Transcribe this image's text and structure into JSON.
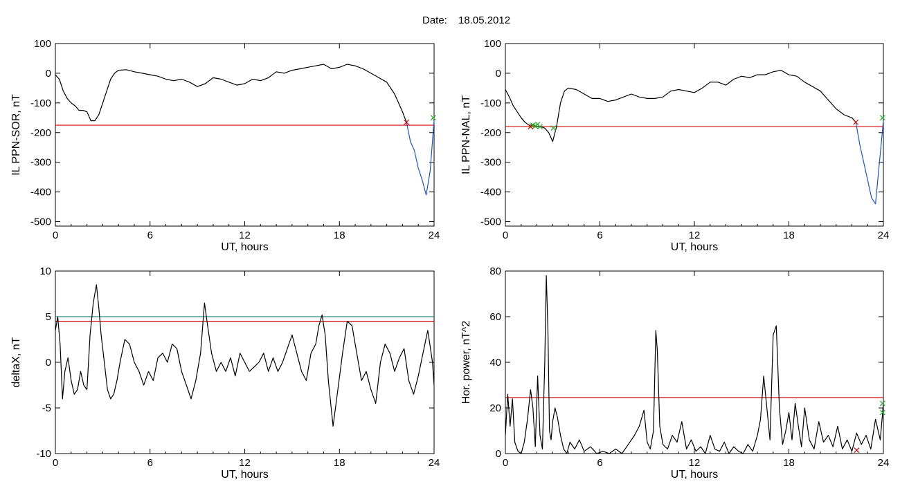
{
  "figure": {
    "date_label": "Date:",
    "date_value": "18.05.2012"
  },
  "colors": {
    "trace": "#000000",
    "threshold_red": "#d00000",
    "threshold_teal": "#208a8a",
    "highlight_blue": "#1a55c8",
    "marker_red": "#d00000",
    "marker_green": "#22aa22",
    "axis": "#000000"
  },
  "chart_data": [
    {
      "id": "sor",
      "type": "line",
      "title": "",
      "xlabel": "UT, hours",
      "ylabel": "IL PPN-SOR, nT",
      "xlim": [
        0,
        24
      ],
      "ylim": [
        -515,
        100
      ],
      "xticks": [
        0,
        6,
        12,
        18,
        24
      ],
      "yticks": [
        100,
        0,
        -100,
        -200,
        -300,
        -400,
        -500
      ],
      "grid": false,
      "threshold": {
        "value": -175,
        "color": "threshold_red"
      },
      "series": [
        {
          "color": "trace",
          "x": [
            0,
            0.25,
            0.5,
            0.75,
            1.0,
            1.25,
            1.5,
            1.75,
            2.0,
            2.25,
            2.5,
            2.75,
            3.0,
            3.25,
            3.5,
            3.75,
            4.0,
            4.5,
            5.0,
            5.5,
            6.0,
            6.5,
            7.0,
            7.5,
            8.0,
            8.5,
            9.0,
            9.5,
            10.0,
            10.5,
            11.0,
            11.5,
            12.0,
            12.5,
            13.0,
            13.5,
            14.0,
            14.5,
            15.0,
            15.5,
            16.0,
            16.5,
            17.0,
            17.5,
            18.0,
            18.5,
            19.0,
            19.5,
            20.0,
            20.5,
            21.0,
            21.5,
            22.0,
            22.25
          ],
          "y": [
            -5,
            -20,
            -60,
            -85,
            -100,
            -110,
            -125,
            -125,
            -130,
            -160,
            -160,
            -140,
            -100,
            -60,
            -20,
            0,
            10,
            12,
            5,
            0,
            -5,
            -10,
            -20,
            -25,
            -20,
            -30,
            -45,
            -35,
            -15,
            -20,
            -30,
            -40,
            -35,
            -20,
            -25,
            -15,
            5,
            0,
            10,
            15,
            20,
            25,
            30,
            15,
            20,
            30,
            25,
            15,
            0,
            -15,
            -30,
            -70,
            -130,
            -165
          ]
        },
        {
          "color": "highlight_blue",
          "x": [
            22.25,
            22.5,
            22.75,
            23.0,
            23.25,
            23.5,
            23.75,
            24.0
          ],
          "y": [
            -165,
            -230,
            -260,
            -320,
            -360,
            -410,
            -330,
            -160
          ]
        }
      ],
      "markers": [
        {
          "x": 22.25,
          "y": -165,
          "symbol": "x",
          "color": "marker_red"
        },
        {
          "x": 23.95,
          "y": -150,
          "symbol": "x",
          "color": "marker_green"
        }
      ]
    },
    {
      "id": "nal",
      "type": "line",
      "title": "",
      "xlabel": "UT, hours",
      "ylabel": "IL PPN-NAL, nT",
      "xlim": [
        0,
        24
      ],
      "ylim": [
        -515,
        100
      ],
      "xticks": [
        0,
        6,
        12,
        18,
        24
      ],
      "yticks": [
        100,
        0,
        -100,
        -200,
        -300,
        -400,
        -500
      ],
      "grid": false,
      "threshold": {
        "value": -180,
        "color": "threshold_red"
      },
      "series": [
        {
          "color": "trace",
          "x": [
            0,
            0.25,
            0.5,
            0.75,
            1.0,
            1.25,
            1.5,
            1.75,
            2.0,
            2.25,
            2.5,
            2.75,
            3.0,
            3.25,
            3.5,
            3.75,
            4.0,
            4.5,
            5.0,
            5.5,
            6.0,
            6.5,
            7.0,
            7.5,
            8.0,
            8.5,
            9.0,
            9.5,
            10.0,
            10.5,
            11.0,
            11.5,
            12.0,
            12.5,
            13.0,
            13.5,
            14.0,
            14.5,
            15.0,
            15.5,
            16.0,
            16.5,
            17.0,
            17.5,
            18.0,
            18.5,
            19.0,
            19.5,
            20.0,
            20.5,
            21.0,
            21.5,
            22.0,
            22.25
          ],
          "y": [
            -55,
            -80,
            -110,
            -130,
            -150,
            -165,
            -175,
            -175,
            -180,
            -180,
            -185,
            -200,
            -230,
            -180,
            -100,
            -60,
            -50,
            -55,
            -70,
            -85,
            -85,
            -95,
            -90,
            -80,
            -70,
            -80,
            -85,
            -85,
            -80,
            -60,
            -55,
            -60,
            -65,
            -50,
            -30,
            -30,
            -40,
            -20,
            -10,
            -15,
            -5,
            -5,
            5,
            10,
            -5,
            -10,
            -30,
            -45,
            -60,
            -90,
            -120,
            -140,
            -150,
            -165
          ]
        },
        {
          "color": "highlight_blue",
          "x": [
            22.25,
            22.5,
            22.75,
            23.0,
            23.25,
            23.5,
            23.75,
            24.0
          ],
          "y": [
            -165,
            -240,
            -300,
            -360,
            -420,
            -440,
            -300,
            -160
          ]
        }
      ],
      "markers": [
        {
          "x": 1.6,
          "y": -180,
          "symbol": "x",
          "color": "marker_red"
        },
        {
          "x": 1.75,
          "y": -175,
          "symbol": "x",
          "color": "marker_green"
        },
        {
          "x": 1.9,
          "y": -178,
          "symbol": "x",
          "color": "marker_green"
        },
        {
          "x": 2.05,
          "y": -172,
          "symbol": "x",
          "color": "marker_green"
        },
        {
          "x": 2.2,
          "y": -180,
          "symbol": "x",
          "color": "marker_green"
        },
        {
          "x": 3.05,
          "y": -185,
          "symbol": "x",
          "color": "marker_green"
        },
        {
          "x": 22.25,
          "y": -165,
          "symbol": "x",
          "color": "marker_red"
        },
        {
          "x": 23.95,
          "y": -150,
          "symbol": "x",
          "color": "marker_green"
        }
      ]
    },
    {
      "id": "deltax",
      "type": "line",
      "title": "",
      "xlabel": "UT, hours",
      "ylabel": "deltaX, nT",
      "xlim": [
        0,
        24
      ],
      "ylim": [
        -10,
        10
      ],
      "xticks": [
        0,
        6,
        12,
        18,
        24
      ],
      "yticks": [
        10,
        5,
        0,
        -5,
        -10
      ],
      "grid": false,
      "thresholds": [
        {
          "value": 5.0,
          "color": "threshold_teal"
        },
        {
          "value": 4.5,
          "color": "threshold_red"
        }
      ],
      "series": [
        {
          "color": "trace",
          "x": [
            0,
            0.15,
            0.3,
            0.45,
            0.6,
            0.8,
            1.0,
            1.2,
            1.4,
            1.6,
            1.8,
            2.0,
            2.2,
            2.4,
            2.6,
            2.75,
            2.9,
            3.1,
            3.3,
            3.5,
            3.7,
            3.9,
            4.1,
            4.4,
            4.7,
            5.0,
            5.3,
            5.6,
            5.9,
            6.2,
            6.5,
            6.8,
            7.1,
            7.4,
            7.7,
            8.0,
            8.3,
            8.6,
            8.9,
            9.2,
            9.45,
            9.65,
            9.9,
            10.2,
            10.5,
            10.8,
            11.1,
            11.4,
            11.7,
            12.0,
            12.3,
            12.6,
            12.9,
            13.2,
            13.5,
            13.8,
            14.1,
            14.4,
            14.7,
            15.0,
            15.3,
            15.6,
            15.9,
            16.2,
            16.5,
            16.7,
            16.9,
            17.1,
            17.3,
            17.6,
            17.9,
            18.2,
            18.5,
            18.8,
            19.1,
            19.4,
            19.7,
            20.0,
            20.3,
            20.6,
            20.9,
            21.2,
            21.5,
            21.8,
            22.1,
            22.4,
            22.7,
            23.0,
            23.3,
            23.6,
            23.9,
            24.0
          ],
          "y": [
            3.5,
            5.0,
            2.0,
            -4.0,
            -1.0,
            0.5,
            -2.0,
            -3.5,
            -3.0,
            -1.0,
            -2.5,
            -3.0,
            3.0,
            6.5,
            8.5,
            6.0,
            3.0,
            0.0,
            -3.0,
            -4.0,
            -3.5,
            -2.0,
            0.0,
            2.5,
            2.0,
            0.0,
            -1.0,
            -2.5,
            -1.0,
            -2.0,
            0.5,
            1.0,
            0.0,
            2.0,
            1.5,
            -1.0,
            -2.5,
            -4.0,
            -2.0,
            1.0,
            6.5,
            4.0,
            1.0,
            -1.0,
            0.0,
            -1.0,
            0.5,
            -1.5,
            1.0,
            0.0,
            -1.0,
            -0.5,
            0.0,
            1.0,
            -1.0,
            0.5,
            -1.0,
            0.0,
            1.5,
            3.0,
            1.0,
            -1.0,
            -2.0,
            1.0,
            2.0,
            4.0,
            5.2,
            3.0,
            -2.0,
            -7.0,
            -3.0,
            1.0,
            4.5,
            4.0,
            1.0,
            -2.0,
            -1.0,
            -3.0,
            -4.5,
            0.0,
            2.0,
            1.0,
            -1.0,
            0.5,
            1.5,
            -2.0,
            -3.5,
            -1.5,
            1.0,
            3.5,
            0.0,
            -2.5
          ]
        }
      ]
    },
    {
      "id": "power",
      "type": "line",
      "title": "",
      "xlabel": "UT, hours",
      "ylabel": "Hor. power, nT^2",
      "xlim": [
        0,
        24
      ],
      "ylim": [
        0,
        80
      ],
      "xticks": [
        0,
        6,
        12,
        18,
        24
      ],
      "yticks": [
        80,
        60,
        40,
        20,
        0
      ],
      "grid": false,
      "threshold": {
        "value": 24.5,
        "color": "threshold_red"
      },
      "series": [
        {
          "color": "trace",
          "x": [
            0,
            0.15,
            0.3,
            0.45,
            0.6,
            0.8,
            1.0,
            1.2,
            1.4,
            1.6,
            1.75,
            1.9,
            2.05,
            2.2,
            2.35,
            2.5,
            2.6,
            2.7,
            2.8,
            2.9,
            3.0,
            3.15,
            3.3,
            3.5,
            3.7,
            3.9,
            4.1,
            4.4,
            4.7,
            5.0,
            5.4,
            5.8,
            6.2,
            6.6,
            7.0,
            7.4,
            7.8,
            8.2,
            8.5,
            8.8,
            9.0,
            9.2,
            9.4,
            9.55,
            9.65,
            9.8,
            10.0,
            10.3,
            10.6,
            10.9,
            11.2,
            11.5,
            11.8,
            12.1,
            12.4,
            12.7,
            13.0,
            13.3,
            13.6,
            13.9,
            14.2,
            14.5,
            14.8,
            15.1,
            15.4,
            15.7,
            16.0,
            16.2,
            16.4,
            16.6,
            16.8,
            17.0,
            17.2,
            17.4,
            17.6,
            17.8,
            18.0,
            18.2,
            18.4,
            18.6,
            18.8,
            19.0,
            19.3,
            19.6,
            19.9,
            20.2,
            20.5,
            20.8,
            21.1,
            21.4,
            21.7,
            22.0,
            22.3,
            22.6,
            22.9,
            23.2,
            23.5,
            23.8,
            24.0
          ],
          "y": [
            8,
            26,
            12,
            24,
            5,
            1,
            0,
            5,
            15,
            28,
            20,
            3,
            34,
            8,
            2,
            40,
            78,
            55,
            10,
            6,
            14,
            20,
            16,
            8,
            2,
            0,
            5,
            2,
            6,
            1,
            3,
            0,
            1,
            0,
            2,
            0,
            4,
            8,
            12,
            19,
            5,
            2,
            10,
            54,
            45,
            12,
            4,
            2,
            8,
            5,
            14,
            2,
            6,
            1,
            3,
            0,
            8,
            2,
            1,
            5,
            0,
            3,
            1,
            0,
            4,
            1,
            8,
            15,
            34,
            20,
            6,
            52,
            56,
            20,
            4,
            10,
            18,
            6,
            22,
            12,
            3,
            20,
            6,
            2,
            14,
            5,
            8,
            3,
            12,
            2,
            6,
            1,
            9,
            4,
            8,
            2,
            15,
            6,
            22
          ]
        }
      ],
      "markers": [
        {
          "x": 22.3,
          "y": 1.5,
          "symbol": "x",
          "color": "marker_red"
        },
        {
          "x": 23.95,
          "y": 18,
          "symbol": "x",
          "color": "marker_green"
        },
        {
          "x": 23.95,
          "y": 22,
          "symbol": "x",
          "color": "marker_green"
        }
      ]
    }
  ]
}
